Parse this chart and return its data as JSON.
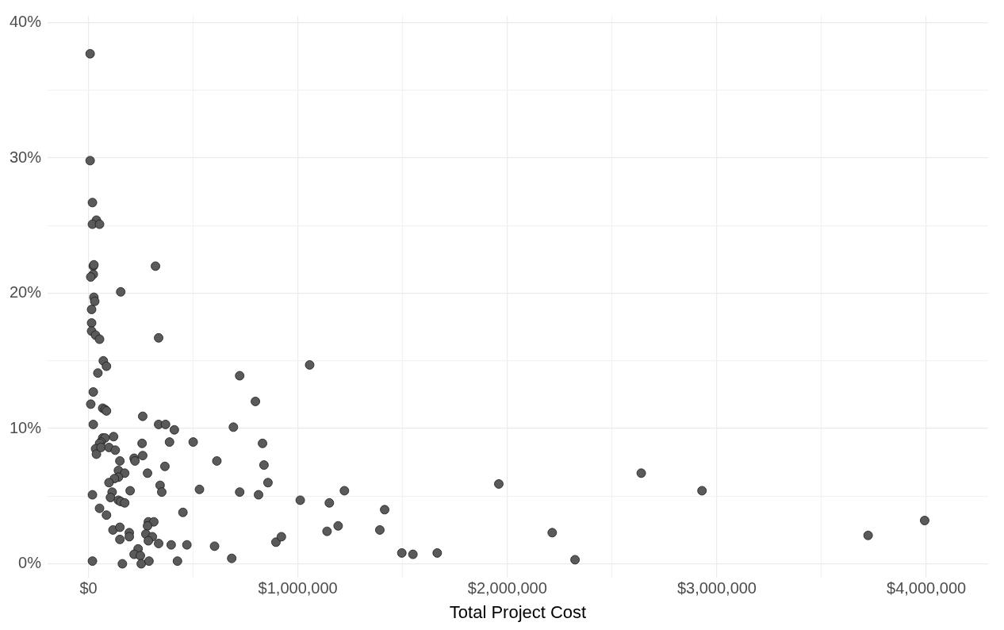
{
  "chart_data": {
    "type": "scatter",
    "xlabel": "Total Project Cost",
    "grid": true,
    "marker": "circle",
    "legend": false,
    "xlim": [
      -195000,
      4295000
    ],
    "ylim": [
      -1,
      40.5
    ],
    "xticks": [
      {
        "value": 0,
        "label": "$0"
      },
      {
        "value": 500000,
        "label": null
      },
      {
        "value": 1000000,
        "label": "$1,000,000"
      },
      {
        "value": 1500000,
        "label": null
      },
      {
        "value": 2000000,
        "label": "$2,000,000"
      },
      {
        "value": 2500000,
        "label": null
      },
      {
        "value": 3000000,
        "label": "$3,000,000"
      },
      {
        "value": 3500000,
        "label": null
      },
      {
        "value": 4000000,
        "label": "$4,000,000"
      }
    ],
    "yticks": [
      {
        "value": 0,
        "label": "0%"
      },
      {
        "value": 5,
        "label": null
      },
      {
        "value": 10,
        "label": "10%"
      },
      {
        "value": 15,
        "label": null
      },
      {
        "value": 20,
        "label": "20%"
      },
      {
        "value": 25,
        "label": null
      },
      {
        "value": 30,
        "label": "30%"
      },
      {
        "value": 35,
        "label": null
      },
      {
        "value": 40,
        "label": "40%"
      }
    ],
    "series": [
      {
        "color": "#5a5a5a",
        "x": [
          8000,
          8000,
          19000,
          38000,
          19000,
          53000,
          23000,
          26000,
          23000,
          11000,
          320000,
          154000,
          26000,
          30000,
          15000,
          15000,
          15000,
          34000,
          53000,
          335000,
          71000,
          86000,
          45000,
          23000,
          11000,
          68000,
          79000,
          86000,
          259000,
          23000,
          335000,
          368000,
          410000,
          722000,
          797000,
          692000,
          120000,
          68000,
          79000,
          60000,
          53000,
          34000,
          38000,
          60000,
          98000,
          128000,
          256000,
          387000,
          500000,
          831000,
          613000,
          838000,
          857000,
          150000,
          218000,
          222000,
          259000,
          365000,
          282000,
          143000,
          173000,
          143000,
          124000,
          98000,
          342000,
          350000,
          199000,
          530000,
          722000,
          812000,
          1011000,
          19000,
          113000,
          105000,
          143000,
          154000,
          173000,
          451000,
          53000,
          86000,
          286000,
          312000,
          282000,
          117000,
          150000,
          195000,
          195000,
          274000,
          305000,
          150000,
          286000,
          335000,
          395000,
          470000,
          602000,
          895000,
          921000,
          237000,
          218000,
          248000,
          19000,
          162000,
          252000,
          289000,
          425000,
          684000,
          1056000,
          1150000,
          1222000,
          1414000,
          1139000,
          1192000,
          1391000,
          1496000,
          1549000,
          1665000,
          1959000,
          2214000,
          2323000,
          2639000,
          2929000,
          3722000,
          3992000
        ],
        "values": [
          37.7,
          29.8,
          26.7,
          25.4,
          25.1,
          25.1,
          22.0,
          22.1,
          21.4,
          21.2,
          22.0,
          20.1,
          19.7,
          19.4,
          18.8,
          17.8,
          17.2,
          16.9,
          16.6,
          16.7,
          15.0,
          14.6,
          14.1,
          12.7,
          11.8,
          11.5,
          11.4,
          11.3,
          10.9,
          10.3,
          10.3,
          10.3,
          9.9,
          13.9,
          12.0,
          10.1,
          9.4,
          9.3,
          9.3,
          9.0,
          8.9,
          8.5,
          8.1,
          8.6,
          8.6,
          8.4,
          8.9,
          9.0,
          9.0,
          8.9,
          7.6,
          7.3,
          6.0,
          7.6,
          7.8,
          7.6,
          8.0,
          7.2,
          6.7,
          6.9,
          6.7,
          6.4,
          6.3,
          6.0,
          5.8,
          5.3,
          5.4,
          5.5,
          5.3,
          5.1,
          4.7,
          5.1,
          5.3,
          4.9,
          4.7,
          4.6,
          4.5,
          3.8,
          4.1,
          3.6,
          3.1,
          3.1,
          2.8,
          2.5,
          2.7,
          2.3,
          2.0,
          2.2,
          2.0,
          1.8,
          1.7,
          1.5,
          1.4,
          1.4,
          1.3,
          1.6,
          2.0,
          1.1,
          0.7,
          0.6,
          0.2,
          0,
          0,
          0.2,
          0.2,
          0.4,
          14.7,
          4.5,
          5.4,
          4.0,
          2.4,
          2.8,
          2.5,
          0.8,
          0.7,
          0.8,
          5.9,
          2.3,
          0.3,
          6.7,
          5.4,
          2.1,
          3.2
        ]
      }
    ]
  }
}
